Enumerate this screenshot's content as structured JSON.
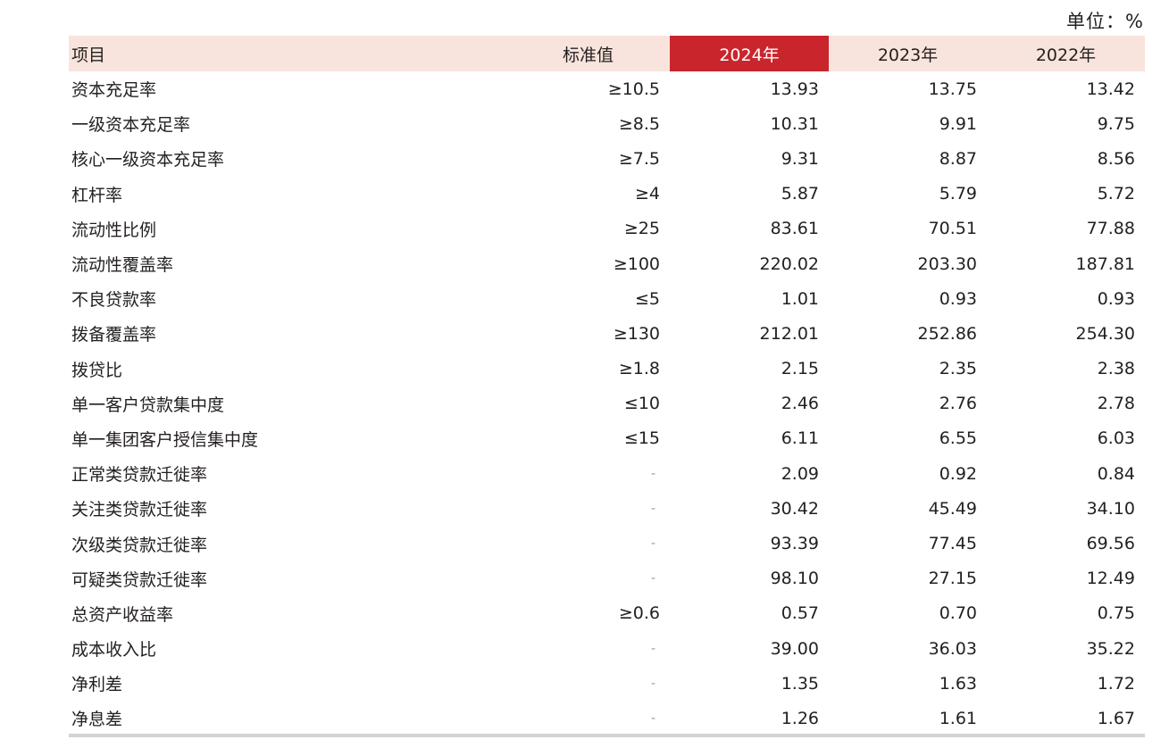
{
  "unit_label": "单位：%",
  "header": {
    "item": "项目",
    "standard": "标准值",
    "years": [
      "2024年",
      "2023年",
      "2022年"
    ]
  },
  "rows": [
    {
      "name": "资本充足率",
      "standard": "≥10.5",
      "values": [
        "13.93",
        "13.75",
        "13.42"
      ]
    },
    {
      "name": "一级资本充足率",
      "standard": "≥8.5",
      "values": [
        "10.31",
        "9.91",
        "9.75"
      ]
    },
    {
      "name": "核心一级资本充足率",
      "standard": "≥7.5",
      "values": [
        "9.31",
        "8.87",
        "8.56"
      ]
    },
    {
      "name": "杠杆率",
      "standard": "≥4",
      "values": [
        "5.87",
        "5.79",
        "5.72"
      ]
    },
    {
      "name": "流动性比例",
      "standard": "≥25",
      "values": [
        "83.61",
        "70.51",
        "77.88"
      ]
    },
    {
      "name": "流动性覆盖率",
      "standard": "≥100",
      "values": [
        "220.02",
        "203.30",
        "187.81"
      ]
    },
    {
      "name": "不良贷款率",
      "standard": "≤5",
      "values": [
        "1.01",
        "0.93",
        "0.93"
      ]
    },
    {
      "name": "拨备覆盖率",
      "standard": "≥130",
      "values": [
        "212.01",
        "252.86",
        "254.30"
      ]
    },
    {
      "name": "拨贷比",
      "standard": "≥1.8",
      "values": [
        "2.15",
        "2.35",
        "2.38"
      ]
    },
    {
      "name": "单一客户贷款集中度",
      "standard": "≤10",
      "values": [
        "2.46",
        "2.76",
        "2.78"
      ]
    },
    {
      "name": "单一集团客户授信集中度",
      "standard": "≤15",
      "values": [
        "6.11",
        "6.55",
        "6.03"
      ]
    },
    {
      "name": "正常类贷款迁徙率",
      "standard": "-",
      "values": [
        "2.09",
        "0.92",
        "0.84"
      ]
    },
    {
      "name": "关注类贷款迁徙率",
      "standard": "-",
      "values": [
        "30.42",
        "45.49",
        "34.10"
      ]
    },
    {
      "name": "次级类贷款迁徙率",
      "standard": "-",
      "values": [
        "93.39",
        "77.45",
        "69.56"
      ]
    },
    {
      "name": "可疑类贷款迁徙率",
      "standard": "-",
      "values": [
        "98.10",
        "27.15",
        "12.49"
      ]
    },
    {
      "name": "总资产收益率",
      "standard": "≥0.6",
      "values": [
        "0.57",
        "0.70",
        "0.75"
      ]
    },
    {
      "name": "成本收入比",
      "standard": "-",
      "values": [
        "39.00",
        "36.03",
        "35.22"
      ]
    },
    {
      "name": "净利差",
      "standard": "-",
      "values": [
        "1.35",
        "1.63",
        "1.72"
      ]
    },
    {
      "name": "净息差",
      "standard": "-",
      "values": [
        "1.26",
        "1.61",
        "1.67"
      ]
    }
  ],
  "colors": {
    "header_background": "#f8e4dc",
    "current_year_background": "#c9252c",
    "current_year_text": "#ffffff",
    "text": "#231f20",
    "dash": "#9a9a9a",
    "bottom_rule": "#d3d3d3"
  }
}
